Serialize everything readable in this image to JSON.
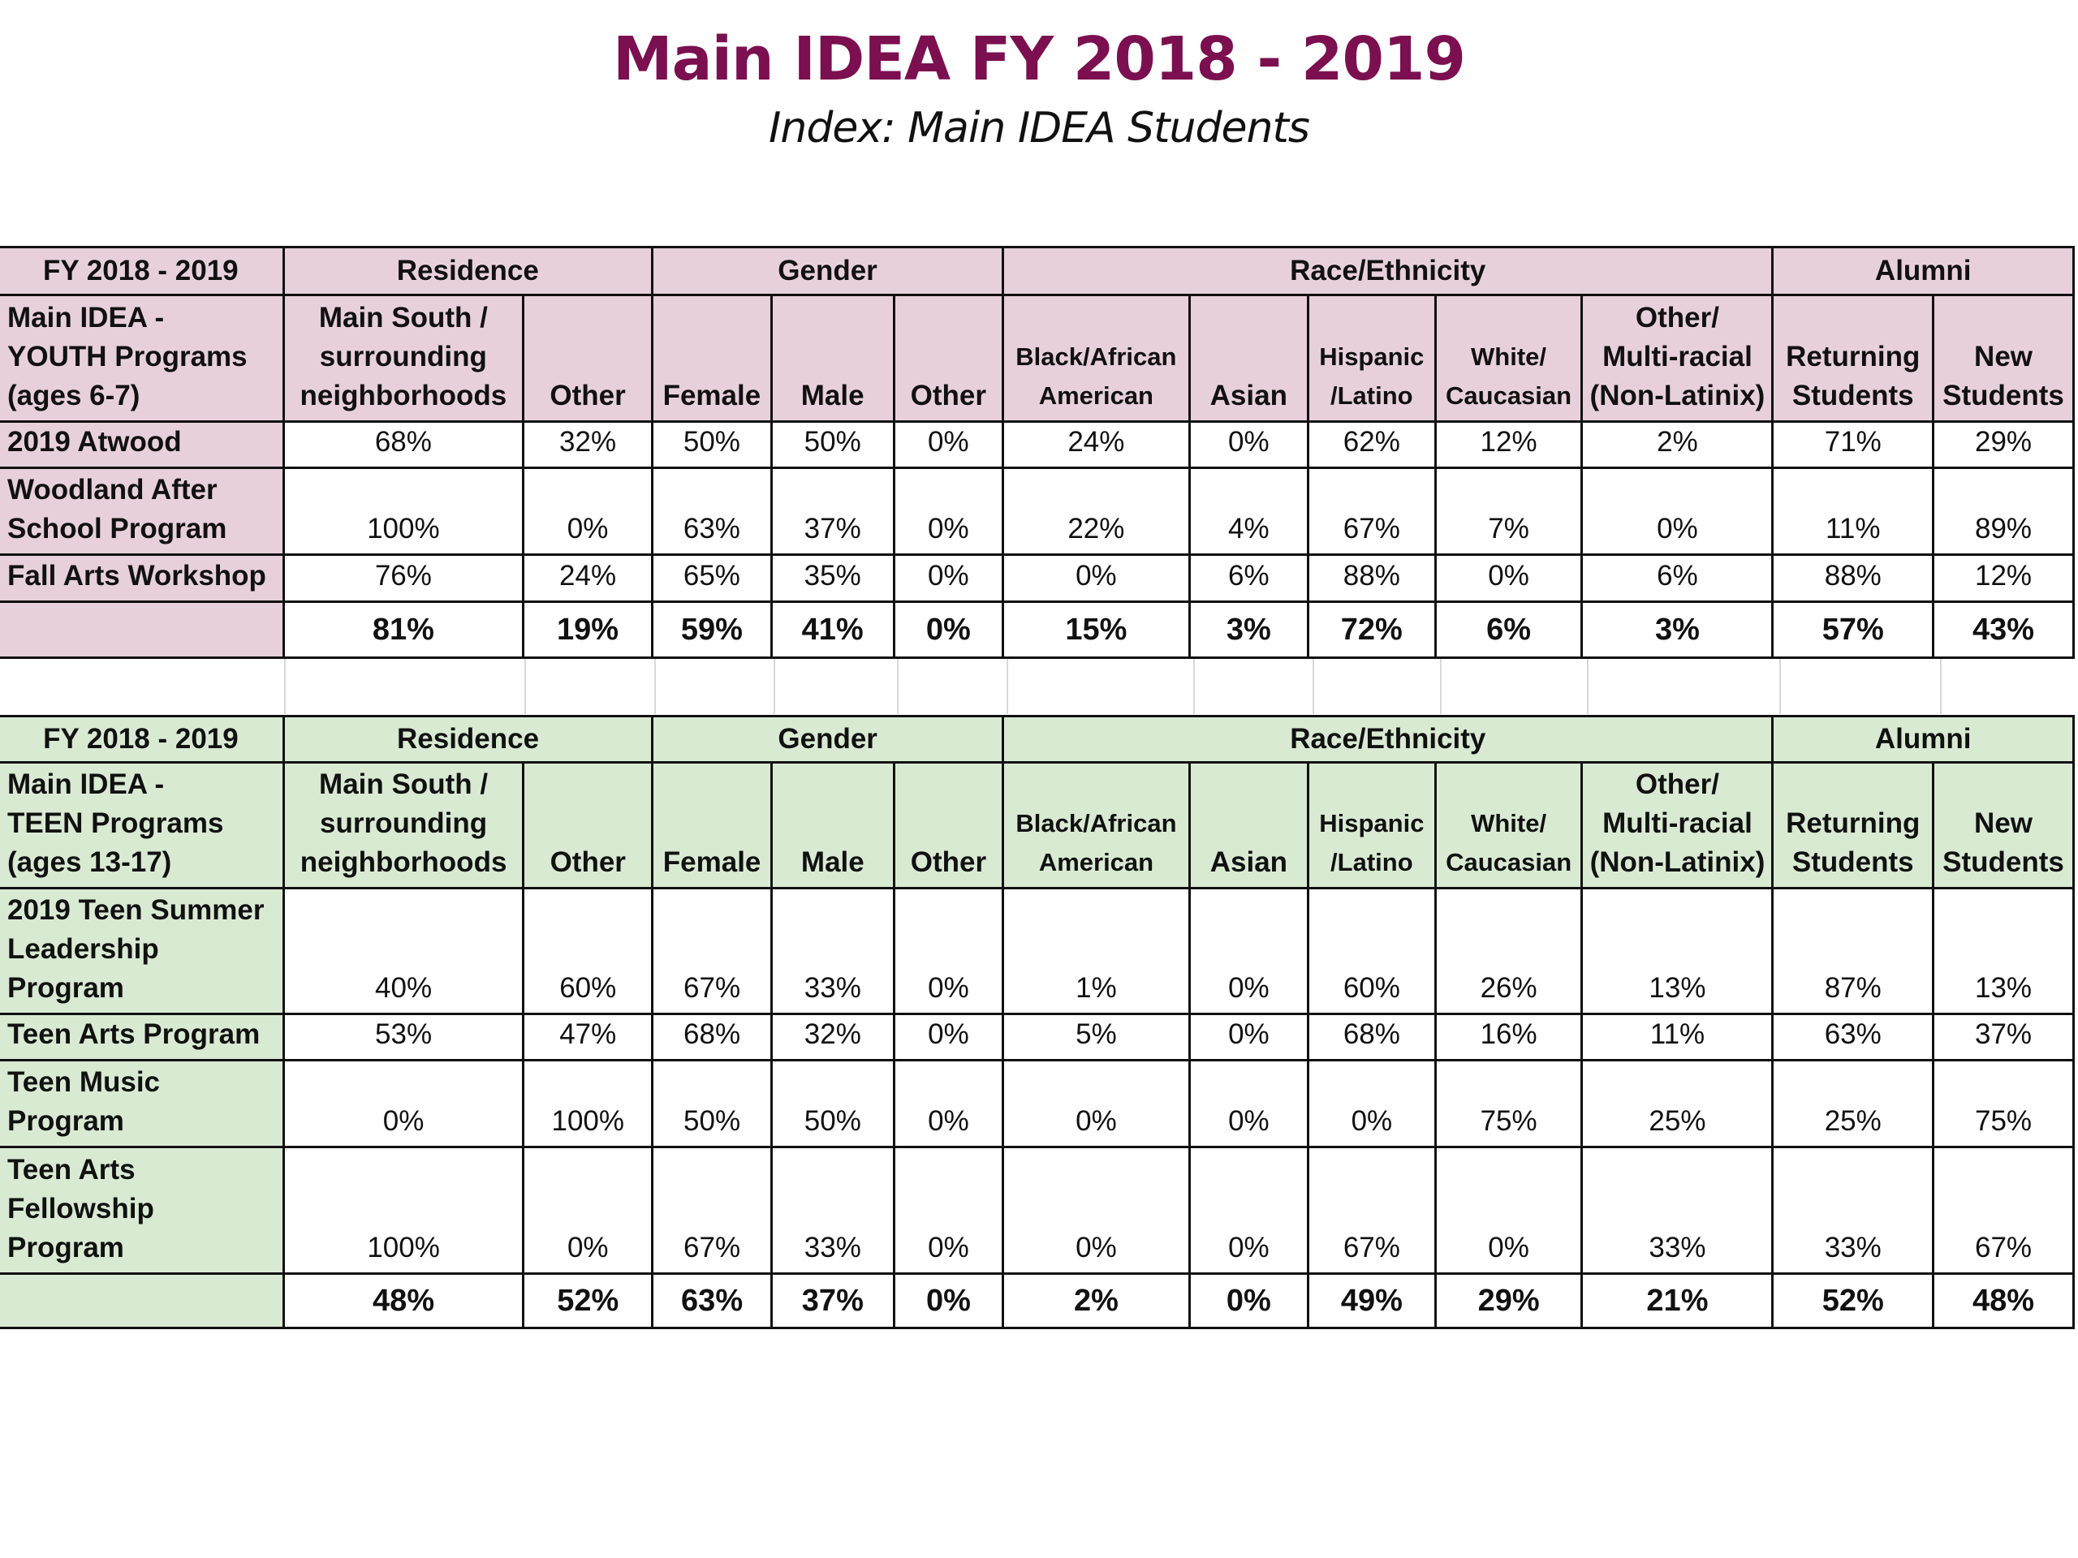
{
  "title": "Main IDEA FY 2018 - 2019",
  "subtitle": "Index: Main IDEA Students",
  "colors": {
    "title": "#7b0f4f",
    "youth_shade": "#e7d0dc",
    "teen_shade": "#d9ead3"
  },
  "youth": {
    "groups": [
      "FY 2018 - 2019",
      "Residence",
      "Gender",
      "Race/Ethnicity",
      "Alumni"
    ],
    "corner": [
      "Main IDEA -",
      "YOUTH Programs",
      "(ages 6-7)"
    ],
    "columns": [
      [
        "Main South /",
        "surrounding",
        "neighborhoods"
      ],
      [
        "Other"
      ],
      [
        "Female"
      ],
      [
        "Male"
      ],
      [
        "Other"
      ],
      [
        "Black/African",
        "American"
      ],
      [
        "Asian"
      ],
      [
        "Hispanic",
        "/Latino"
      ],
      [
        "White/",
        "Caucasian"
      ],
      [
        "Other/",
        "Multi-racial",
        "(Non-Latinix)"
      ],
      [
        "Returning",
        "Students"
      ],
      [
        "New",
        "Students"
      ]
    ],
    "rows": [
      {
        "name": [
          "2019 Atwood"
        ],
        "values": [
          "68%",
          "32%",
          "50%",
          "50%",
          "0%",
          "24%",
          "0%",
          "62%",
          "12%",
          "2%",
          "71%",
          "29%"
        ]
      },
      {
        "name": [
          "Woodland After",
          "School Program"
        ],
        "values": [
          "100%",
          "0%",
          "63%",
          "37%",
          "0%",
          "22%",
          "4%",
          "67%",
          "7%",
          "0%",
          "11%",
          "89%"
        ]
      },
      {
        "name": [
          "Fall Arts Workshop"
        ],
        "values": [
          "76%",
          "24%",
          "65%",
          "35%",
          "0%",
          "0%",
          "6%",
          "88%",
          "0%",
          "6%",
          "88%",
          "12%"
        ]
      }
    ],
    "totals": [
      "81%",
      "19%",
      "59%",
      "41%",
      "0%",
      "15%",
      "3%",
      "72%",
      "6%",
      "3%",
      "57%",
      "43%"
    ]
  },
  "teen": {
    "groups": [
      "FY 2018 - 2019",
      "Residence",
      "Gender",
      "Race/Ethnicity",
      "Alumni"
    ],
    "corner": [
      "Main IDEA -",
      "TEEN Programs",
      "(ages 13-17)"
    ],
    "columns": [
      [
        "Main South /",
        "surrounding",
        "neighborhoods"
      ],
      [
        "Other"
      ],
      [
        "Female"
      ],
      [
        "Male"
      ],
      [
        "Other"
      ],
      [
        "Black/African",
        "American"
      ],
      [
        "Asian"
      ],
      [
        "Hispanic",
        "/Latino"
      ],
      [
        "White/",
        "Caucasian"
      ],
      [
        "Other/",
        "Multi-racial",
        "(Non-Latinix)"
      ],
      [
        "Returning",
        "Students"
      ],
      [
        "New",
        "Students"
      ]
    ],
    "rows": [
      {
        "name": [
          "2019 Teen Summer",
          "Leadership",
          "Program"
        ],
        "values": [
          "40%",
          "60%",
          "67%",
          "33%",
          "0%",
          "1%",
          "0%",
          "60%",
          "26%",
          "13%",
          "87%",
          "13%"
        ]
      },
      {
        "name": [
          "Teen Arts Program"
        ],
        "values": [
          "53%",
          "47%",
          "68%",
          "32%",
          "0%",
          "5%",
          "0%",
          "68%",
          "16%",
          "11%",
          "63%",
          "37%"
        ]
      },
      {
        "name": [
          "Teen Music",
          "Program"
        ],
        "values": [
          "0%",
          "100%",
          "50%",
          "50%",
          "0%",
          "0%",
          "0%",
          "0%",
          "75%",
          "25%",
          "25%",
          "75%"
        ]
      },
      {
        "name": [
          "Teen Arts",
          "Fellowship",
          "Program"
        ],
        "values": [
          "100%",
          "0%",
          "67%",
          "33%",
          "0%",
          "0%",
          "0%",
          "67%",
          "0%",
          "33%",
          "33%",
          "67%"
        ]
      }
    ],
    "totals": [
      "48%",
      "52%",
      "63%",
      "37%",
      "0%",
      "2%",
      "0%",
      "49%",
      "29%",
      "21%",
      "52%",
      "48%"
    ]
  }
}
